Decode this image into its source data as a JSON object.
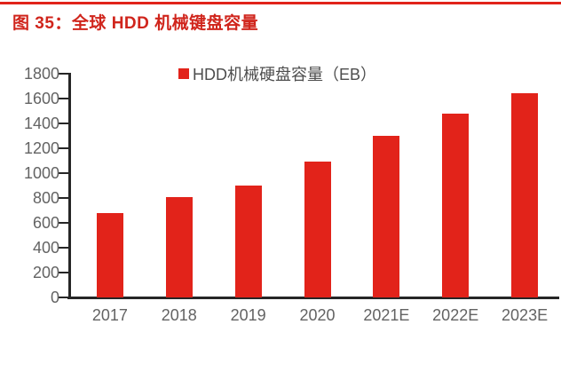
{
  "figure": {
    "title": "图 35：全球 HDD 机械键盘容量"
  },
  "legend": {
    "label": "HDD机械硬盘容量（EB）",
    "marker_color": "#e2231a"
  },
  "chart_data": {
    "type": "bar",
    "title": "图 35：全球 HDD 机械键盘容量",
    "legend_entries": [
      "HDD机械硬盘容量（EB）"
    ],
    "legend_position": "top-center",
    "categories": [
      "2017",
      "2018",
      "2019",
      "2020",
      "2021E",
      "2022E",
      "2023E"
    ],
    "values": [
      680,
      810,
      900,
      1090,
      1300,
      1480,
      1640
    ],
    "unit": "EB",
    "xlabel": "",
    "ylabel": "",
    "ylim": [
      0,
      1800
    ],
    "yticks": [
      0,
      200,
      400,
      600,
      800,
      1000,
      1200,
      1400,
      1600,
      1800
    ],
    "grid": false,
    "bar_color": "#e2231a"
  },
  "colors": {
    "title_red": "#d0251c",
    "rule_red": "#e1231a",
    "bar_red": "#e2231a",
    "axis_dark": "#262626",
    "tick_label_gray": "#636363",
    "legend_text_gray": "#4d4d4d"
  }
}
